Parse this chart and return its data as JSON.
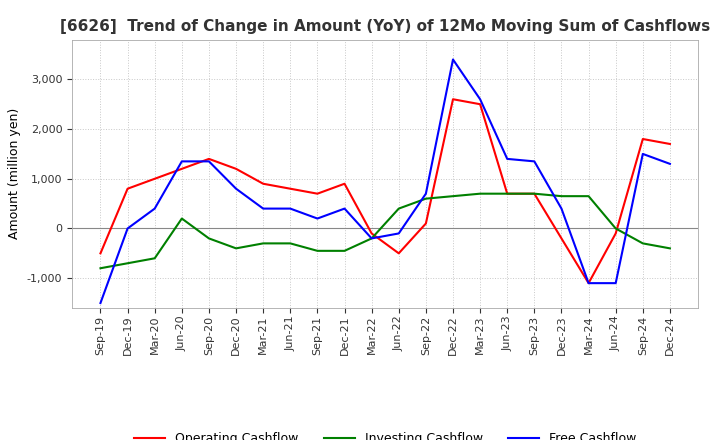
{
  "title": "[6626]  Trend of Change in Amount (YoY) of 12Mo Moving Sum of Cashflows",
  "ylabel": "Amount (million yen)",
  "xlabels": [
    "Sep-19",
    "Dec-19",
    "Mar-20",
    "Jun-20",
    "Sep-20",
    "Dec-20",
    "Mar-21",
    "Jun-21",
    "Sep-21",
    "Dec-21",
    "Mar-22",
    "Jun-22",
    "Sep-22",
    "Dec-22",
    "Mar-23",
    "Jun-23",
    "Sep-23",
    "Dec-23",
    "Mar-24",
    "Jun-24",
    "Sep-24",
    "Dec-24"
  ],
  "operating": [
    -500,
    800,
    1000,
    1200,
    1400,
    1200,
    900,
    800,
    700,
    900,
    -100,
    -500,
    100,
    2600,
    2500,
    700,
    700,
    -200,
    -1100,
    -100,
    1800,
    1700
  ],
  "investing": [
    -800,
    -700,
    -600,
    200,
    -200,
    -400,
    -300,
    -300,
    -450,
    -450,
    -200,
    400,
    600,
    650,
    700,
    700,
    700,
    650,
    650,
    0,
    -300,
    -400
  ],
  "free": [
    -1500,
    0,
    400,
    1350,
    1350,
    800,
    400,
    400,
    200,
    400,
    -200,
    -100,
    700,
    3400,
    2600,
    1400,
    1350,
    400,
    -1100,
    -1100,
    1500,
    1300
  ],
  "ylim": [
    -1600,
    3800
  ],
  "yticks": [
    -1000,
    0,
    1000,
    2000,
    3000
  ],
  "operating_color": "#ff0000",
  "investing_color": "#008000",
  "free_color": "#0000ff",
  "bg_color": "#ffffff",
  "grid_color": "#c8c8c8",
  "title_color": "#333333",
  "title_fontsize": 11,
  "ylabel_fontsize": 9,
  "tick_fontsize": 8,
  "legend_fontsize": 9,
  "linewidth": 1.5
}
